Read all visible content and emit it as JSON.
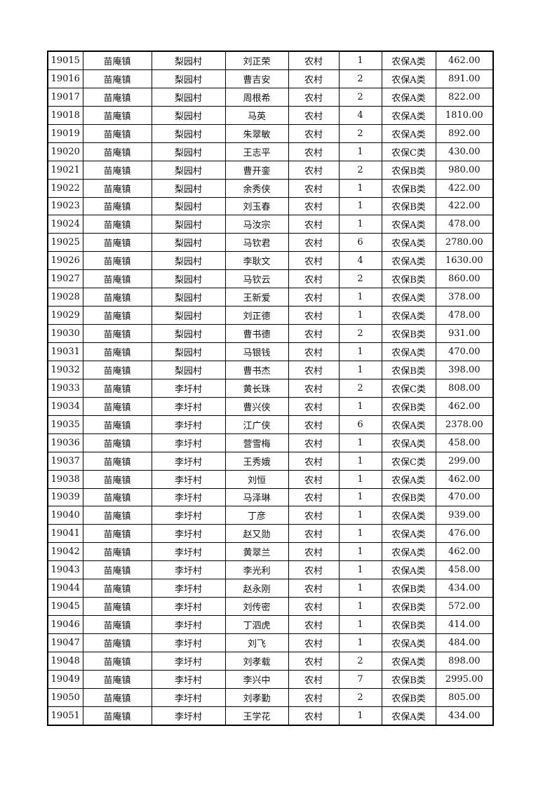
{
  "rows": [
    [
      "19015",
      "苗庵镇",
      "梨园村",
      "刘正荣",
      "农村",
      "1",
      "农保A类",
      "462.00"
    ],
    [
      "19016",
      "苗庵镇",
      "梨园村",
      "曹吉安",
      "农村",
      "2",
      "农保A类",
      "891.00"
    ],
    [
      "19017",
      "苗庵镇",
      "梨园村",
      "周根希",
      "农村",
      "2",
      "农保A类",
      "822.00"
    ],
    [
      "19018",
      "苗庵镇",
      "梨园村",
      "马英",
      "农村",
      "4",
      "农保A类",
      "1810.00"
    ],
    [
      "19019",
      "苗庵镇",
      "梨园村",
      "朱翠敏",
      "农村",
      "2",
      "农保A类",
      "892.00"
    ],
    [
      "19020",
      "苗庵镇",
      "梨园村",
      "王志平",
      "农村",
      "1",
      "农保C类",
      "430.00"
    ],
    [
      "19021",
      "苗庵镇",
      "梨园村",
      "曹开銮",
      "农村",
      "2",
      "农保B类",
      "980.00"
    ],
    [
      "19022",
      "苗庵镇",
      "梨园村",
      "余秀侠",
      "农村",
      "1",
      "农保B类",
      "422.00"
    ],
    [
      "19023",
      "苗庵镇",
      "梨园村",
      "刘玉春",
      "农村",
      "1",
      "农保B类",
      "422.00"
    ],
    [
      "19024",
      "苗庵镇",
      "梨园村",
      "马汝宗",
      "农村",
      "1",
      "农保A类",
      "478.00"
    ],
    [
      "19025",
      "苗庵镇",
      "梨园村",
      "马钦君",
      "农村",
      "6",
      "农保A类",
      "2780.00"
    ],
    [
      "19026",
      "苗庵镇",
      "梨园村",
      "李耿文",
      "农村",
      "4",
      "农保A类",
      "1630.00"
    ],
    [
      "19027",
      "苗庵镇",
      "梨园村",
      "马钦云",
      "农村",
      "2",
      "农保B类",
      "860.00"
    ],
    [
      "19028",
      "苗庵镇",
      "梨园村",
      "王新爱",
      "农村",
      "1",
      "农保A类",
      "378.00"
    ],
    [
      "19029",
      "苗庵镇",
      "梨园村",
      "刘正德",
      "农村",
      "1",
      "农保A类",
      "478.00"
    ],
    [
      "19030",
      "苗庵镇",
      "梨园村",
      "曹书德",
      "农村",
      "2",
      "农保B类",
      "931.00"
    ],
    [
      "19031",
      "苗庵镇",
      "梨园村",
      "马银钱",
      "农村",
      "1",
      "农保A类",
      "470.00"
    ],
    [
      "19032",
      "苗庵镇",
      "梨园村",
      "曹书杰",
      "农村",
      "1",
      "农保B类",
      "398.00"
    ],
    [
      "19033",
      "苗庵镇",
      "李圩村",
      "黄长珠",
      "农村",
      "2",
      "农保C类",
      "808.00"
    ],
    [
      "19034",
      "苗庵镇",
      "李圩村",
      "曹兴侠",
      "农村",
      "1",
      "农保B类",
      "462.00"
    ],
    [
      "19035",
      "苗庵镇",
      "李圩村",
      "江广侠",
      "农村",
      "6",
      "农保A类",
      "2378.00"
    ],
    [
      "19036",
      "苗庵镇",
      "李圩村",
      "营雪梅",
      "农村",
      "1",
      "农保A类",
      "458.00"
    ],
    [
      "19037",
      "苗庵镇",
      "李圩村",
      "王秀娥",
      "农村",
      "1",
      "农保C类",
      "299.00"
    ],
    [
      "19038",
      "苗庵镇",
      "李圩村",
      "刘恒",
      "农村",
      "1",
      "农保A类",
      "462.00"
    ],
    [
      "19039",
      "苗庵镇",
      "李圩村",
      "马泽琳",
      "农村",
      "1",
      "农保B类",
      "470.00"
    ],
    [
      "19040",
      "苗庵镇",
      "李圩村",
      "丁彦",
      "农村",
      "1",
      "农保A类",
      "939.00"
    ],
    [
      "19041",
      "苗庵镇",
      "李圩村",
      "赵又勋",
      "农村",
      "1",
      "农保A类",
      "476.00"
    ],
    [
      "19042",
      "苗庵镇",
      "李圩村",
      "黄翠兰",
      "农村",
      "1",
      "农保A类",
      "462.00"
    ],
    [
      "19043",
      "苗庵镇",
      "李圩村",
      "李光利",
      "农村",
      "1",
      "农保A类",
      "458.00"
    ],
    [
      "19044",
      "苗庵镇",
      "李圩村",
      "赵永刚",
      "农村",
      "1",
      "农保B类",
      "434.00"
    ],
    [
      "19045",
      "苗庵镇",
      "李圩村",
      "刘传密",
      "农村",
      "1",
      "农保B类",
      "572.00"
    ],
    [
      "19046",
      "苗庵镇",
      "李圩村",
      "丁泗虎",
      "农村",
      "1",
      "农保B类",
      "414.00"
    ],
    [
      "19047",
      "苗庵镇",
      "李圩村",
      "刘飞",
      "农村",
      "1",
      "农保A类",
      "484.00"
    ],
    [
      "19048",
      "苗庵镇",
      "李圩村",
      "刘孝载",
      "农村",
      "2",
      "农保A类",
      "898.00"
    ],
    [
      "19049",
      "苗庵镇",
      "李圩村",
      "李兴中",
      "农村",
      "7",
      "农保B类",
      "2995.00"
    ],
    [
      "19050",
      "苗庵镇",
      "李圩村",
      "刘孝勤",
      "农村",
      "2",
      "农保B类",
      "805.00"
    ],
    [
      "19051",
      "苗庵镇",
      "李圩村",
      "王学花",
      "农村",
      "1",
      "农保A类",
      "434.00"
    ]
  ]
}
